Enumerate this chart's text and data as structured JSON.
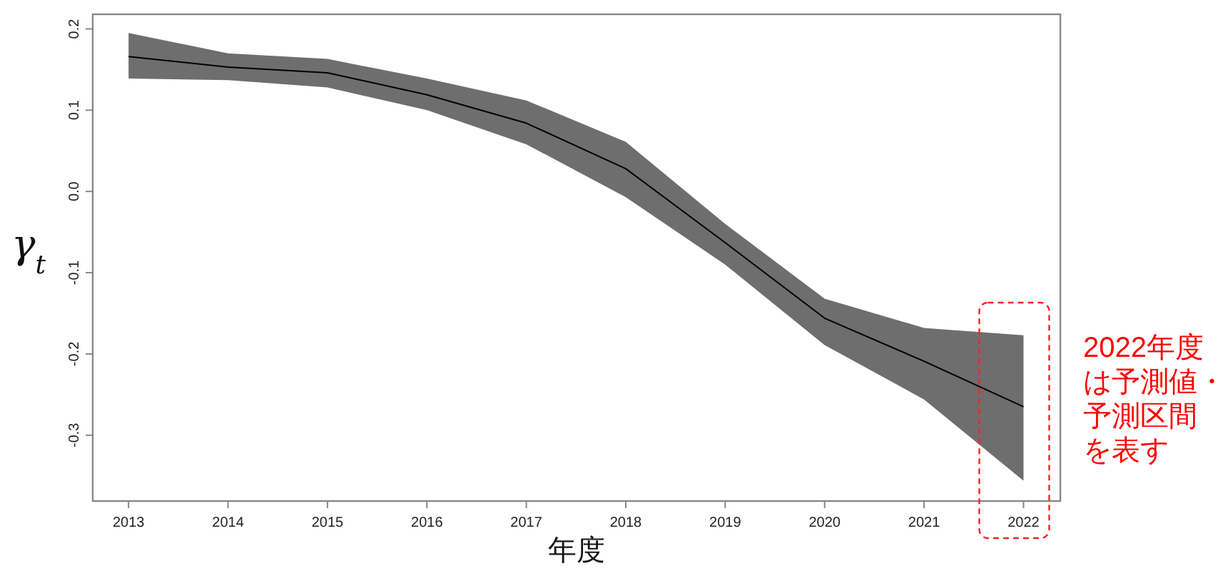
{
  "chart_data": {
    "type": "line",
    "ylabel": "γ$_{t}$",
    "xlabel": "年度",
    "x": [
      2013,
      2014,
      2015,
      2016,
      2017,
      2018,
      2019,
      2020,
      2021,
      2022
    ],
    "series": [
      {
        "color": "#000000",
        "values": [
          0.166,
          0.153,
          0.146,
          0.119,
          0.084,
          0.028,
          -0.063,
          -0.156,
          -0.209,
          -0.265
        ],
        "upper": [
          0.195,
          0.17,
          0.163,
          0.139,
          0.112,
          0.061,
          -0.04,
          -0.132,
          -0.168,
          -0.177
        ],
        "lower": [
          0.139,
          0.137,
          0.128,
          0.1,
          0.058,
          -0.007,
          -0.09,
          -0.189,
          -0.256,
          -0.356
        ]
      }
    ],
    "xlim": [
      2012.64,
      2022.37
    ],
    "ylim": [
      -0.381,
      0.218
    ],
    "xticks": [
      2013,
      2014,
      2015,
      2016,
      2017,
      2018,
      2019,
      2020,
      2021,
      2022
    ],
    "yticks": [
      0.2,
      0.1,
      {
        "value": 0,
        "label": "0.0"
      },
      -0.1,
      -0.2,
      -0.3
    ],
    "annotations": [
      {
        "text": "2022年度は予測値・予測区間を表す",
        "x": 2022
      }
    ],
    "grid": false
  }
}
